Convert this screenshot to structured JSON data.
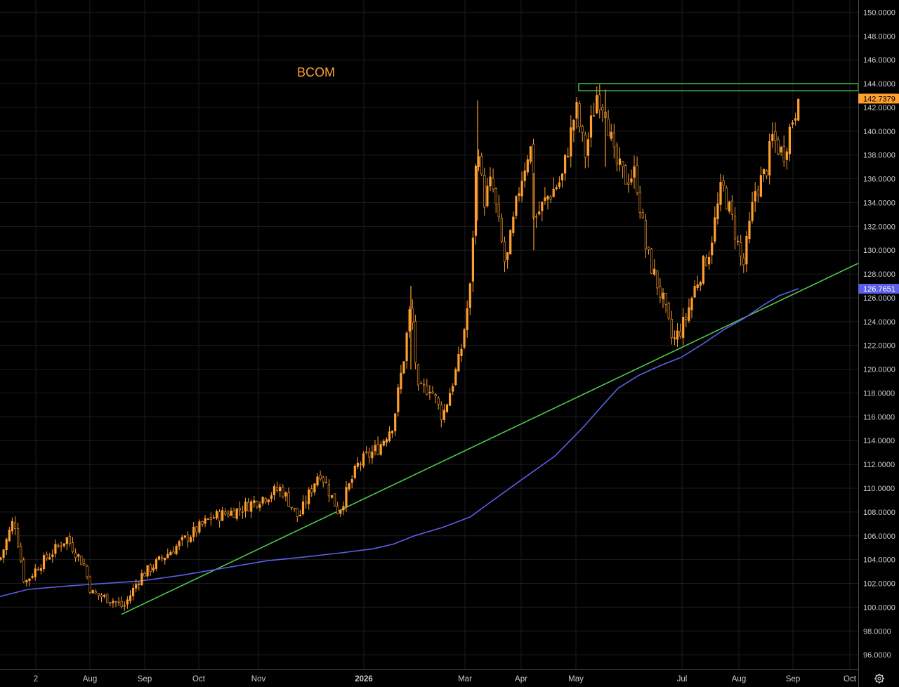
{
  "chart_data": {
    "type": "candlestick",
    "title": "BCOM",
    "y_axis": {
      "min": 95.0,
      "max": 151.0,
      "ticks": [
        "96.0000",
        "98.0000",
        "100.0000",
        "102.0000",
        "104.0000",
        "106.0000",
        "108.0000",
        "110.0000",
        "112.0000",
        "114.0000",
        "116.0000",
        "118.0000",
        "120.0000",
        "122.0000",
        "124.0000",
        "126.0000",
        "128.0000",
        "130.0000",
        "132.0000",
        "134.0000",
        "136.0000",
        "138.0000",
        "140.0000",
        "142.0000",
        "144.0000",
        "146.0000",
        "148.0000",
        "150.0000"
      ]
    },
    "x_axis": {
      "labels": [
        "2",
        "Aug",
        "Sep",
        "Oct",
        "Nov",
        "2026",
        "Mar",
        "Apr",
        "May",
        "Jul",
        "Aug",
        "Sep",
        "Oct"
      ],
      "bold_labels": [
        "2026"
      ]
    },
    "price_series": {
      "name": "",
      "color": "#ff9f2e",
      "anchors": [
        [
          0,
          104.0
        ],
        [
          20,
          107.5
        ],
        [
          35,
          102.0
        ],
        [
          55,
          103.5
        ],
        [
          95,
          105.8
        ],
        [
          120,
          103.5
        ],
        [
          130,
          101.2
        ],
        [
          160,
          100.6
        ],
        [
          176,
          100.0
        ],
        [
          200,
          102.6
        ],
        [
          245,
          104.8
        ],
        [
          300,
          107.5
        ],
        [
          340,
          108.2
        ],
        [
          400,
          110.0
        ],
        [
          425,
          107.5
        ],
        [
          455,
          111.5
        ],
        [
          482,
          108.0
        ],
        [
          510,
          112.0
        ],
        [
          540,
          113.5
        ],
        [
          560,
          115.5
        ],
        [
          575,
          121.0
        ],
        [
          585,
          125.5
        ],
        [
          595,
          118.0
        ],
        [
          612,
          118.6
        ],
        [
          630,
          116.0
        ],
        [
          655,
          121.0
        ],
        [
          670,
          127.0
        ],
        [
          680,
          140.0
        ],
        [
          688,
          134.0
        ],
        [
          700,
          135.8
        ],
        [
          720,
          128.5
        ],
        [
          740,
          135.5
        ],
        [
          755,
          139.0
        ],
        [
          760,
          132.5
        ],
        [
          780,
          134.5
        ],
        [
          800,
          136.0
        ],
        [
          820,
          142.0
        ],
        [
          833,
          138.0
        ],
        [
          850,
          143.2
        ],
        [
          862,
          142.0
        ],
        [
          875,
          137.5
        ],
        [
          890,
          136.0
        ],
        [
          905,
          136.5
        ],
        [
          920,
          130.0
        ],
        [
          945,
          125.5
        ],
        [
          958,
          122.2
        ],
        [
          975,
          124.0
        ],
        [
          990,
          127.0
        ],
        [
          1010,
          130.0
        ],
        [
          1028,
          135.5
        ],
        [
          1045,
          132.0
        ],
        [
          1058,
          128.5
        ],
        [
          1075,
          135.0
        ],
        [
          1090,
          136.5
        ],
        [
          1100,
          139.5
        ],
        [
          1115,
          138.0
        ],
        [
          1128,
          141.0
        ],
        [
          1138,
          142.7
        ]
      ]
    },
    "moving_average": {
      "label": "126.7651",
      "value": 126.7651,
      "color": "#5b5fe8",
      "points": [
        [
          0,
          100.9
        ],
        [
          40,
          101.5
        ],
        [
          100,
          101.8
        ],
        [
          200,
          102.2
        ],
        [
          260,
          102.7
        ],
        [
          320,
          103.3
        ],
        [
          380,
          103.9
        ],
        [
          430,
          104.2
        ],
        [
          490,
          104.6
        ],
        [
          530,
          104.9
        ],
        [
          560,
          105.3
        ],
        [
          590,
          106.0
        ],
        [
          630,
          106.7
        ],
        [
          670,
          107.6
        ],
        [
          700,
          108.9
        ],
        [
          740,
          110.6
        ],
        [
          790,
          112.7
        ],
        [
          830,
          115.1
        ],
        [
          860,
          117.1
        ],
        [
          880,
          118.4
        ],
        [
          910,
          119.5
        ],
        [
          940,
          120.3
        ],
        [
          970,
          121.0
        ],
        [
          1000,
          122.1
        ],
        [
          1030,
          123.3
        ],
        [
          1060,
          124.3
        ],
        [
          1090,
          125.5
        ],
        [
          1110,
          126.2
        ],
        [
          1137,
          126.77
        ]
      ]
    },
    "trendline": {
      "color": "#4ec94e",
      "start": [
        173,
        99.4
      ],
      "end": [
        1222,
        128.9
      ]
    },
    "resistance_zone": {
      "color": "#4ec94e",
      "x_start": 824,
      "top": 144.0,
      "bottom": 143.4
    },
    "last_price": {
      "label": "142.7379",
      "value": 142.7379,
      "color": "#ff9f2e"
    }
  },
  "settings_icon": "gear-icon"
}
